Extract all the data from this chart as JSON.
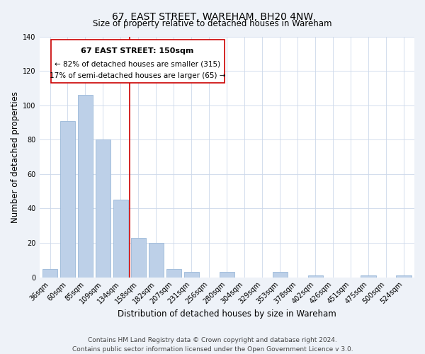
{
  "title": "67, EAST STREET, WAREHAM, BH20 4NW",
  "subtitle": "Size of property relative to detached houses in Wareham",
  "xlabel": "Distribution of detached houses by size in Wareham",
  "ylabel": "Number of detached properties",
  "bar_labels": [
    "36sqm",
    "60sqm",
    "85sqm",
    "109sqm",
    "134sqm",
    "158sqm",
    "182sqm",
    "207sqm",
    "231sqm",
    "256sqm",
    "280sqm",
    "304sqm",
    "329sqm",
    "353sqm",
    "378sqm",
    "402sqm",
    "426sqm",
    "451sqm",
    "475sqm",
    "500sqm",
    "524sqm"
  ],
  "bar_values": [
    5,
    91,
    106,
    80,
    45,
    23,
    20,
    5,
    3,
    0,
    3,
    0,
    0,
    3,
    0,
    1,
    0,
    0,
    1,
    0,
    1
  ],
  "bar_color": "#bdd0e8",
  "bar_edge_color": "#9ab8d8",
  "reference_line_x": 4.5,
  "reference_line_label": "67 EAST STREET: 150sqm",
  "annotation_line1": "← 82% of detached houses are smaller (315)",
  "annotation_line2": "17% of semi-detached houses are larger (65) →",
  "annotation_box_color": "#ffffff",
  "annotation_box_edge": "#cc0000",
  "ref_line_color": "#cc0000",
  "ylim": [
    0,
    140
  ],
  "yticks": [
    0,
    20,
    40,
    60,
    80,
    100,
    120,
    140
  ],
  "footer_line1": "Contains HM Land Registry data © Crown copyright and database right 2024.",
  "footer_line2": "Contains public sector information licensed under the Open Government Licence v 3.0.",
  "bg_color": "#eef2f8",
  "plot_bg_color": "#ffffff",
  "title_fontsize": 10,
  "subtitle_fontsize": 8.5,
  "axis_label_fontsize": 8.5,
  "tick_fontsize": 7,
  "footer_fontsize": 6.5,
  "annot_title_fontsize": 8,
  "annot_text_fontsize": 7.5
}
